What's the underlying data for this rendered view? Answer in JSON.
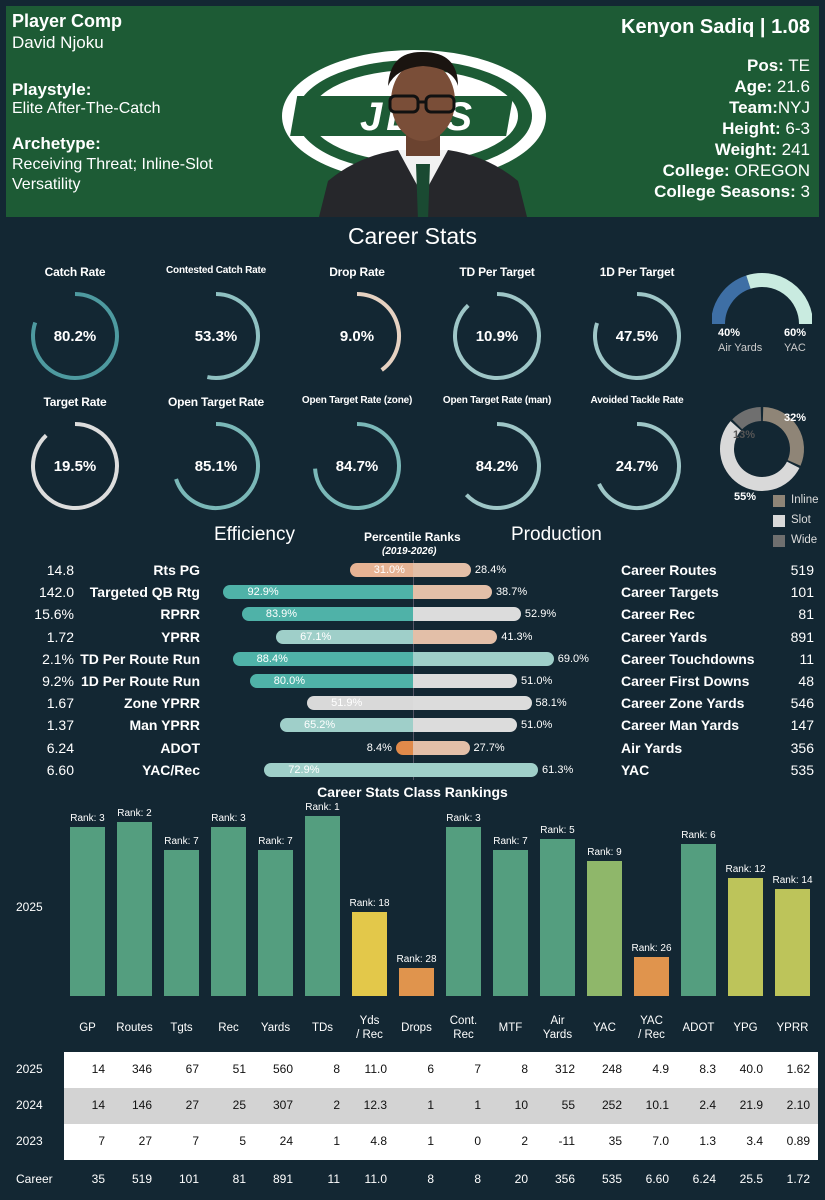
{
  "header": {
    "title": "Player Comp",
    "comp_player": "David Njoku",
    "playstyle_label": "Playstyle:",
    "playstyle": "Elite After-The-Catch",
    "archetype_label": "Archetype:",
    "archetype": "Receiving Threat; Inline-Slot Versatility",
    "player": "Kenyon Sadiq | 1.08",
    "pos_label": "Pos:",
    "pos": "TE",
    "age_label": "Age:",
    "age": "21.6",
    "team_label": "Team:",
    "team": "NYJ",
    "height_label": "Height:",
    "height": "6-3",
    "weight_label": "Weight:",
    "weight": "241",
    "college_label": "College:",
    "college": "OREGON",
    "seasons_label": "College Seasons:",
    "seasons": "3",
    "logo_text": "JETS",
    "colors": {
      "header_bg": "#1d5b35",
      "page_bg": "#132733"
    }
  },
  "career_title": "Career Stats",
  "gauges": [
    {
      "label": "Catch Rate",
      "value": "80.2%",
      "pct": 80.2,
      "color": "#4e9aa0"
    },
    {
      "label": "Contested Catch Rate",
      "value": "53.3%",
      "pct": 53.3,
      "color": "#8fc1c2"
    },
    {
      "label": "Drop Rate",
      "value": "9.0%",
      "pct": 40,
      "color": "#e6d2c2"
    },
    {
      "label": "TD Per Target",
      "value": "10.9%",
      "pct": 88,
      "color": "#9ec6c7"
    },
    {
      "label": "1D Per Target",
      "value": "47.5%",
      "pct": 80,
      "color": "#9ec6c7"
    },
    {
      "label": "Target Rate",
      "value": "19.5%",
      "pct": 88,
      "color": "#dddddd"
    },
    {
      "label": "Open Target Rate",
      "value": "85.1%",
      "pct": 70,
      "color": "#7ab8b8"
    },
    {
      "label": "Open Target Rate (zone)",
      "value": "84.7%",
      "pct": 74,
      "color": "#7ab8b8"
    },
    {
      "label": "Open Target Rate (man)",
      "value": "84.2%",
      "pct": 63,
      "color": "#9ec6c7"
    },
    {
      "label": "Avoided Tackle Rate",
      "value": "24.7%",
      "pct": 68,
      "color": "#9ec6c7"
    }
  ],
  "air_yac": {
    "air_label": "Air Yards",
    "air_value": "40%",
    "air": 40,
    "yac_label": "YAC",
    "yac_value": "60%",
    "yac": 60,
    "air_color": "#3e6fa5",
    "yac_color": "#c9ebe0"
  },
  "alignment": {
    "slices": [
      {
        "name": "Inline",
        "value": 32,
        "label": "32%",
        "color": "#8f8577"
      },
      {
        "name": "Slot",
        "value": 55,
        "label": "55%",
        "color": "#d9d9d9"
      },
      {
        "name": "Wide",
        "value": 13,
        "label": "13%",
        "color": "#6f6f6f"
      }
    ]
  },
  "efficiency_title": "Efficiency",
  "production_title": "Production",
  "percentile_title": "Percentile Ranks",
  "percentile_sub": "(2019-2026)",
  "rows": [
    {
      "lv": "14.8",
      "lname": "Rts PG",
      "lp": 31.0,
      "lpl": "31.0%",
      "rp": 28.4,
      "rpl": "28.4%",
      "rname": "Career Routes",
      "rv": "519"
    },
    {
      "lv": "142.0",
      "lname": "Targeted QB Rtg",
      "lp": 92.9,
      "lpl": "92.9%",
      "rp": 38.7,
      "rpl": "38.7%",
      "rname": "Career Targets",
      "rv": "101"
    },
    {
      "lv": "15.6%",
      "lname": "RPRR",
      "lp": 83.9,
      "lpl": "83.9%",
      "rp": 52.9,
      "rpl": "52.9%",
      "rname": "Career Rec",
      "rv": "81"
    },
    {
      "lv": "1.72",
      "lname": "YPRR",
      "lp": 67.1,
      "lpl": "67.1%",
      "rp": 41.3,
      "rpl": "41.3%",
      "rname": "Career Yards",
      "rv": "891"
    },
    {
      "lv": "2.1%",
      "lname": "TD Per Route Run",
      "lp": 88.4,
      "lpl": "88.4%",
      "rp": 69.0,
      "rpl": "69.0%",
      "rname": "Career Touchdowns",
      "rv": "11"
    },
    {
      "lv": "9.2%",
      "lname": "1D Per Route Run",
      "lp": 80.0,
      "lpl": "80.0%",
      "rp": 51.0,
      "rpl": "51.0%",
      "rname": "Career First Downs",
      "rv": "48"
    },
    {
      "lv": "1.67",
      "lname": "Zone YPRR",
      "lp": 51.9,
      "lpl": "51.9%",
      "rp": 58.1,
      "rpl": "58.1%",
      "rname": "Career Zone Yards",
      "rv": "546"
    },
    {
      "lv": "1.37",
      "lname": "Man YPRR",
      "lp": 65.2,
      "lpl": "65.2%",
      "rp": 51.0,
      "rpl": "51.0%",
      "rname": "Career Man Yards",
      "rv": "147"
    },
    {
      "lv": "6.24",
      "lname": "ADOT",
      "lp": 8.4,
      "lpl": "8.4%",
      "rp": 27.7,
      "rpl": "27.7%",
      "rname": "Air Yards",
      "rv": "356"
    },
    {
      "lv": "6.60",
      "lname": "YAC/Rec",
      "lp": 72.9,
      "lpl": "72.9%",
      "rp": 61.3,
      "rpl": "61.3%",
      "rname": "YAC",
      "rv": "535"
    }
  ],
  "chart_data": {
    "type": "bar",
    "title": "Career Stats Class Rankings",
    "row_label": "2025",
    "categories": [
      "GP",
      "Routes",
      "Tgts",
      "Rec",
      "Yards",
      "TDs",
      "Yds / Rec",
      "Drops",
      "Cont. Rec",
      "MTF",
      "Air Yards",
      "YAC",
      "YAC / Rec",
      "ADOT",
      "YPG",
      "YPRR"
    ],
    "ranks": [
      3,
      2,
      7,
      3,
      7,
      1,
      18,
      28,
      3,
      7,
      5,
      9,
      26,
      6,
      12,
      14
    ],
    "rank_prefix": "Rank: "
  },
  "table": {
    "headers": [
      "GP",
      "Routes",
      "Tgts",
      "Rec",
      "Yards",
      "TDs",
      "Yds / Rec",
      "Drops",
      "Cont. Rec",
      "MTF",
      "Air Yards",
      "YAC",
      "YAC / Rec",
      "ADOT",
      "YPG",
      "YPRR"
    ],
    "rows": [
      {
        "label": "2025",
        "cells": [
          "14",
          "346",
          "67",
          "51",
          "560",
          "8",
          "11.0",
          "6",
          "7",
          "8",
          "312",
          "248",
          "4.9",
          "8.3",
          "40.0",
          "1.62"
        ]
      },
      {
        "label": "2024",
        "cells": [
          "14",
          "146",
          "27",
          "25",
          "307",
          "2",
          "12.3",
          "1",
          "1",
          "10",
          "55",
          "252",
          "10.1",
          "2.4",
          "21.9",
          "2.10"
        ]
      },
      {
        "label": "2023",
        "cells": [
          "7",
          "27",
          "7",
          "5",
          "24",
          "1",
          "4.8",
          "1",
          "0",
          "2",
          "-11",
          "35",
          "7.0",
          "1.3",
          "3.4",
          "0.89"
        ]
      },
      {
        "label": "Career",
        "cells": [
          "35",
          "519",
          "101",
          "81",
          "891",
          "11",
          "11.0",
          "8",
          "8",
          "20",
          "356",
          "535",
          "6.60",
          "6.24",
          "25.5",
          "1.72"
        ]
      }
    ]
  }
}
